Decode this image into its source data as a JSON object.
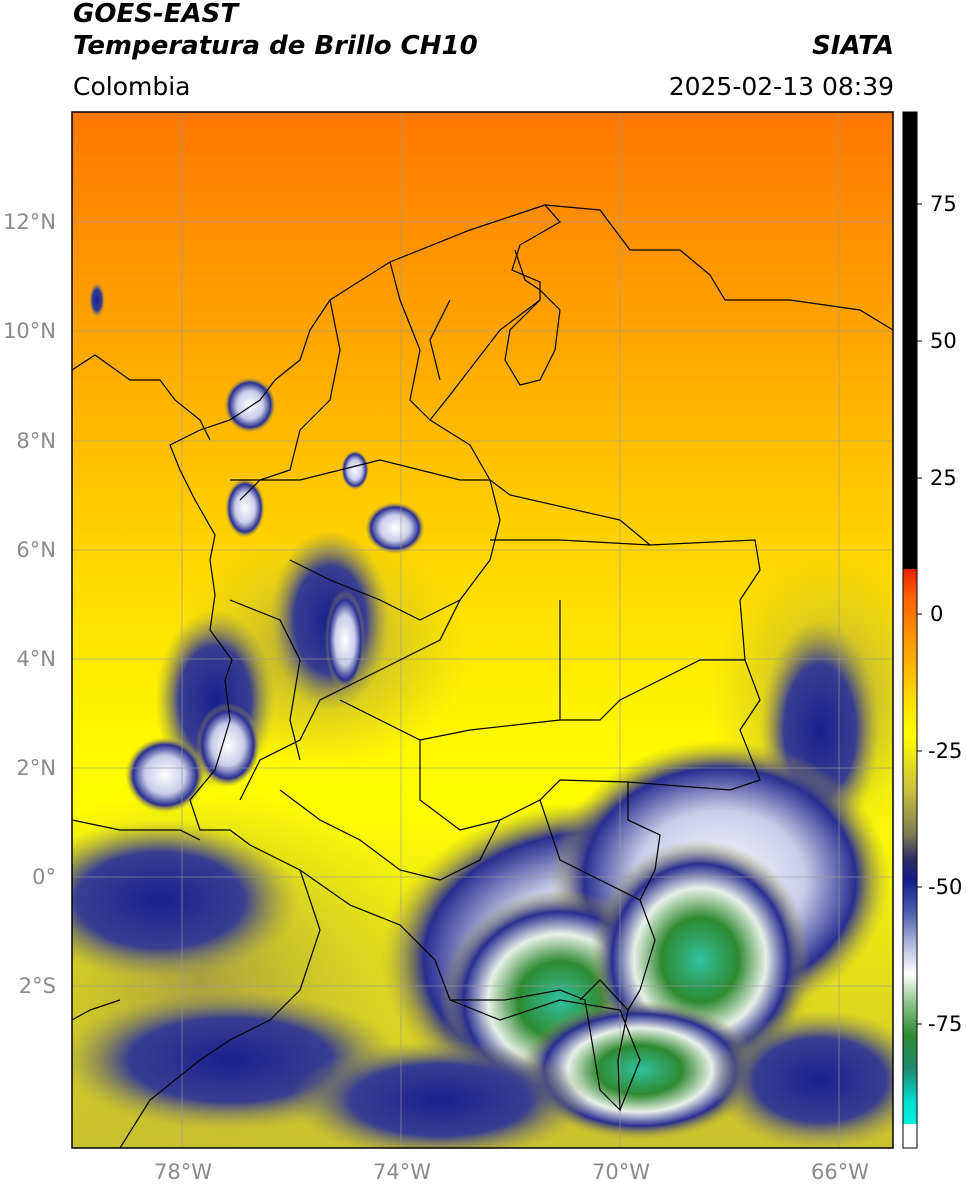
{
  "header": {
    "satellite": "GOES-EAST",
    "product": "Temperatura de Brillo CH10",
    "region": "Colombia",
    "source": "SIATA",
    "datetime": "2025-02-13 08:39"
  },
  "map": {
    "lat_labels": [
      "12°N",
      "10°N",
      "8°N",
      "6°N",
      "4°N",
      "2°N",
      "0°",
      "2°S"
    ],
    "lon_labels": [
      "78°W",
      "74°W",
      "70°W",
      "66°W"
    ],
    "colorbar": {
      "tick_labels": [
        "75",
        "50",
        "25",
        "0",
        "-25",
        "-50",
        "-75"
      ],
      "colors": {
        "warm_top": "#000000",
        "zero": "#ff2a00",
        "orange": "#ff9a00",
        "yellow": "#ffff00",
        "olive": "#b8b040",
        "navy": "#141a8c",
        "white": "#ffffff",
        "green": "#2e8a30",
        "cyan": "#00e0d0"
      }
    }
  }
}
